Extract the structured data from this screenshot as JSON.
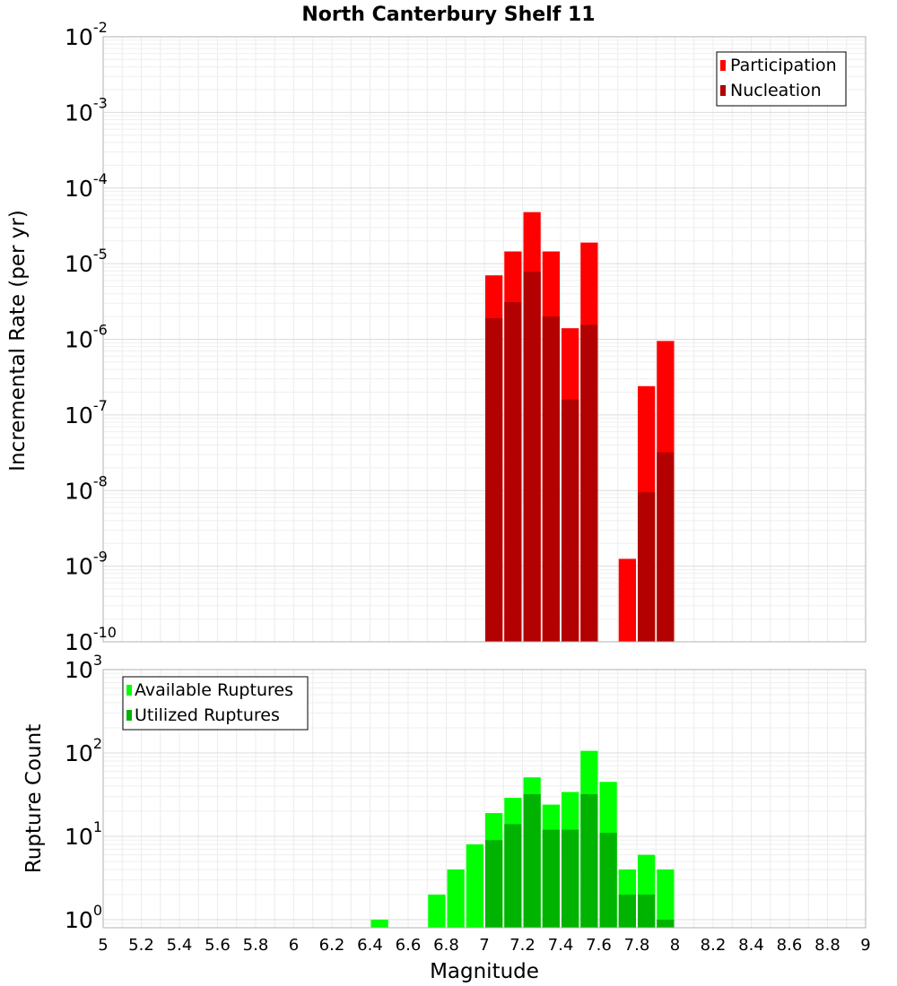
{
  "title": "North Canterbury Shelf 11",
  "xlabel": "Magnitude",
  "chart_data": [
    {
      "type": "bar",
      "title": "North Canterbury Shelf 11",
      "ylabel": "Incremental Rate (per yr)",
      "y_scale": "log",
      "ylim": [
        1e-10,
        0.01
      ],
      "y_tick_exponents": [
        "-10",
        "-9",
        "-8",
        "-7",
        "-6",
        "-5",
        "-4",
        "-3",
        "-2"
      ],
      "xlim": [
        5,
        9
      ],
      "x_ticks": [
        "5",
        "5.2",
        "5.4",
        "5.6",
        "5.8",
        "6",
        "6.2",
        "6.4",
        "6.6",
        "6.8",
        "7",
        "7.2",
        "7.4",
        "7.6",
        "7.8",
        "8",
        "8.2",
        "8.4",
        "8.6",
        "8.8",
        "9"
      ],
      "bin_width": 0.1,
      "grid": true,
      "legend_position": "top-right",
      "x": [
        7.05,
        7.15,
        7.25,
        7.35,
        7.45,
        7.55,
        7.75,
        7.85,
        7.95
      ],
      "series": [
        {
          "name": "Participation",
          "color": "#ff0000",
          "values": [
            7e-06,
            1.45e-05,
            4.8e-05,
            1.45e-05,
            1.4e-06,
            1.9e-05,
            1.25e-09,
            2.4e-07,
            9.5e-07
          ]
        },
        {
          "name": "Nucleation",
          "color": "#b30000",
          "values": [
            1.9e-06,
            3.1e-06,
            7.8e-06,
            2e-06,
            1.6e-07,
            1.55e-06,
            null,
            9.5e-09,
            3.2e-08
          ]
        }
      ]
    },
    {
      "type": "bar",
      "ylabel": "Rupture Count",
      "y_scale": "log",
      "ylim": [
        0.8,
        1000
      ],
      "y_tick_exponents": [
        "0",
        "1",
        "2",
        "3"
      ],
      "xlim": [
        5,
        9
      ],
      "bin_width": 0.1,
      "grid": true,
      "legend_position": "top-left",
      "x": [
        6.45,
        6.75,
        6.85,
        6.95,
        7.05,
        7.15,
        7.25,
        7.35,
        7.45,
        7.55,
        7.65,
        7.75,
        7.85,
        7.95
      ],
      "series": [
        {
          "name": "Available Ruptures",
          "color": "#00ff00",
          "values": [
            1,
            2,
            4,
            8,
            19,
            29,
            51,
            24,
            34,
            106,
            45,
            4,
            6,
            4
          ]
        },
        {
          "name": "Utilized Ruptures",
          "color": "#00b300",
          "values": [
            null,
            null,
            null,
            null,
            9,
            14,
            32,
            12,
            12,
            32,
            11,
            2,
            2,
            1
          ]
        }
      ]
    }
  ]
}
